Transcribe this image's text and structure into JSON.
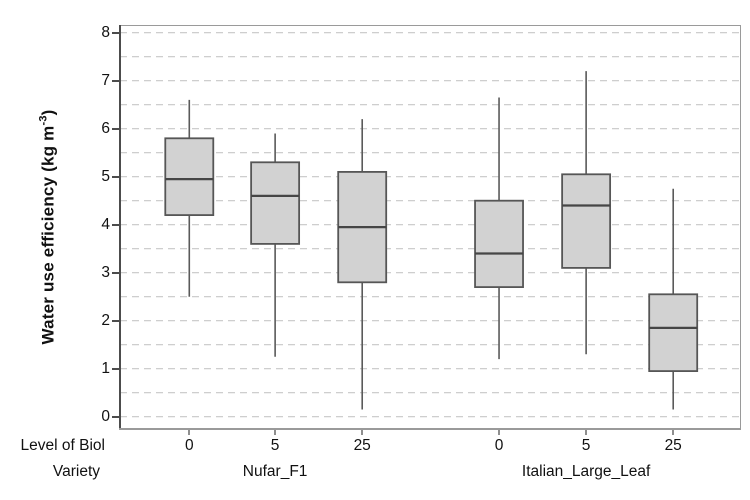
{
  "figure": {
    "ylabel": {
      "prefix": "Water use efficiency (kg m",
      "sup": "-3",
      "suffix": ")"
    },
    "x_axis": {
      "row1_label": "Level of Biol",
      "row2_label": "Variety"
    }
  },
  "chart_data": {
    "type": "boxplot",
    "title": "",
    "ylabel": "Water use efficiency (kg m^-3)",
    "xlabel_rows": [
      "Level of Biol",
      "Variety"
    ],
    "ylim": [
      0,
      8
    ],
    "yticks": [
      0,
      1,
      2,
      3,
      4,
      5,
      6,
      7,
      8
    ],
    "grid": {
      "on": true,
      "step": 0.5,
      "style": "dashed",
      "legend": "none"
    },
    "groups": [
      {
        "name": "Nufar_F1",
        "center_frac": 0.251
      },
      {
        "name": "Italian_Large_Leaf",
        "center_frac": 0.751
      }
    ],
    "boxes": [
      {
        "variety": "Nufar_F1",
        "level": "0",
        "x_frac": 0.113,
        "whisker_low": 2.5,
        "q1": 4.2,
        "median": 4.95,
        "q3": 5.8,
        "whisker_high": 6.6
      },
      {
        "variety": "Nufar_F1",
        "level": "5",
        "x_frac": 0.251,
        "whisker_low": 1.25,
        "q1": 3.6,
        "median": 4.6,
        "q3": 5.3,
        "whisker_high": 5.9
      },
      {
        "variety": "Nufar_F1",
        "level": "25",
        "x_frac": 0.391,
        "whisker_low": 0.15,
        "q1": 2.8,
        "median": 3.95,
        "q3": 5.1,
        "whisker_high": 6.2
      },
      {
        "variety": "Italian_Large_Leaf",
        "level": "0",
        "x_frac": 0.611,
        "whisker_low": 1.2,
        "q1": 2.7,
        "median": 3.4,
        "q3": 4.5,
        "whisker_high": 6.65
      },
      {
        "variety": "Italian_Large_Leaf",
        "level": "5",
        "x_frac": 0.751,
        "whisker_low": 1.3,
        "q1": 3.1,
        "median": 4.4,
        "q3": 5.05,
        "whisker_high": 7.2
      },
      {
        "variety": "Italian_Large_Leaf",
        "level": "25",
        "x_frac": 0.891,
        "whisker_low": 0.15,
        "q1": 0.95,
        "median": 1.85,
        "q3": 2.55,
        "whisker_high": 4.75
      }
    ],
    "colors": {
      "box_fill": "#d2d2d2",
      "box_border": "#565656",
      "median": "#464646",
      "whisker": "#5a5a5a",
      "gridline": "#c8c8c8",
      "frame": "#9a9a9a",
      "axis_left": "#4c4c4c",
      "text": "#111111"
    }
  }
}
